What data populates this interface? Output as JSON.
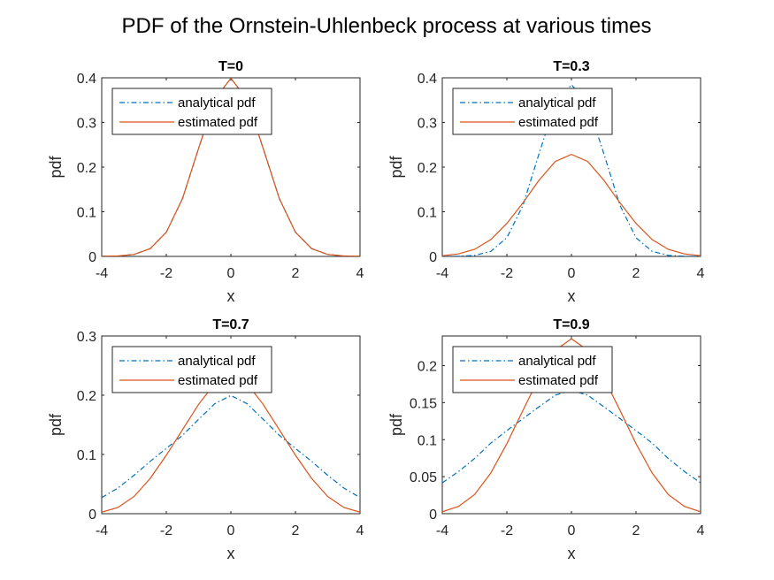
{
  "figure": {
    "title": "PDF of the Ornstein-Uhlenbeck process at various times",
    "colors": {
      "analytical": "#0072BD",
      "estimated": "#D95319",
      "axis": "#262626"
    }
  },
  "chart_data": [
    {
      "type": "line",
      "title": "T=0",
      "xlabel": "x",
      "ylabel": "pdf",
      "xlim": [
        -4,
        4
      ],
      "ylim": [
        0,
        0.4
      ],
      "xticks": [
        "-4",
        "-2",
        "0",
        "2",
        "4"
      ],
      "yticks": [
        "0",
        "0.1",
        "0.2",
        "0.3",
        "0.4"
      ],
      "xtick_values": [
        -4,
        -2,
        0,
        2,
        4
      ],
      "ytick_values": [
        0,
        0.1,
        0.2,
        0.3,
        0.4
      ],
      "grid": false,
      "legend_position": "top-left",
      "x": [
        -4,
        -3.5,
        -3,
        -2.5,
        -2,
        -1.5,
        -1,
        -0.5,
        0,
        0.5,
        1,
        1.5,
        2,
        2.5,
        3,
        3.5,
        4
      ],
      "series": [
        {
          "name": "analytical pdf",
          "style": "dash-dot",
          "values": [
            0.0001,
            0.0009,
            0.0044,
            0.0175,
            0.054,
            0.1295,
            0.242,
            0.3521,
            0.3989,
            0.3521,
            0.242,
            0.1295,
            0.054,
            0.0175,
            0.0044,
            0.0009,
            0.0001
          ]
        },
        {
          "name": "estimated pdf",
          "style": "solid",
          "values": [
            0.0001,
            0.0009,
            0.0044,
            0.0175,
            0.054,
            0.1295,
            0.242,
            0.3521,
            0.3989,
            0.3521,
            0.242,
            0.1295,
            0.054,
            0.0175,
            0.0044,
            0.0009,
            0.0001
          ]
        }
      ]
    },
    {
      "type": "line",
      "title": "T=0.3",
      "xlabel": "x",
      "ylabel": "pdf",
      "xlim": [
        -4,
        4
      ],
      "ylim": [
        0,
        0.4
      ],
      "xticks": [
        "-4",
        "-2",
        "0",
        "2",
        "4"
      ],
      "yticks": [
        "0",
        "0.1",
        "0.2",
        "0.3",
        "0.4"
      ],
      "xtick_values": [
        -4,
        -2,
        0,
        2,
        4
      ],
      "ytick_values": [
        0,
        0.1,
        0.2,
        0.3,
        0.4
      ],
      "grid": false,
      "legend_position": "top-left",
      "x": [
        -4,
        -3.5,
        -3,
        -2.5,
        -2,
        -1.5,
        -1,
        -0.5,
        0,
        0.5,
        1,
        1.5,
        2,
        2.5,
        3,
        3.5,
        4
      ],
      "series": [
        {
          "name": "analytical pdf",
          "style": "dash-dot",
          "values": [
            0,
            0.0003,
            0.0022,
            0.0112,
            0.0418,
            0.1146,
            0.2309,
            0.3423,
            0.3845,
            0.3423,
            0.2309,
            0.1146,
            0.0418,
            0.0112,
            0.0022,
            0.0003,
            0
          ]
        },
        {
          "name": "estimated pdf",
          "style": "solid",
          "values": [
            0.0015,
            0.0055,
            0.0158,
            0.0376,
            0.0739,
            0.1202,
            0.1711,
            0.2126,
            0.2286,
            0.2126,
            0.1711,
            0.1202,
            0.0739,
            0.0376,
            0.0158,
            0.0055,
            0.0015
          ]
        }
      ]
    },
    {
      "type": "line",
      "title": "T=0.7",
      "xlabel": "x",
      "ylabel": "pdf",
      "xlim": [
        -4,
        4
      ],
      "ylim": [
        0,
        0.3
      ],
      "xticks": [
        "-4",
        "-2",
        "0",
        "2",
        "4"
      ],
      "yticks": [
        "0",
        "0.1",
        "0.2",
        "0.3"
      ],
      "xtick_values": [
        -4,
        -2,
        0,
        2,
        4
      ],
      "ytick_values": [
        0,
        0.1,
        0.2,
        0.3
      ],
      "grid": false,
      "legend_position": "top-left",
      "x": [
        -4,
        -3.5,
        -3,
        -2.5,
        -2,
        -1.5,
        -1,
        -0.5,
        0,
        0.5,
        1,
        1.5,
        2,
        2.5,
        3,
        3.5,
        4
      ],
      "series": [
        {
          "name": "analytical pdf",
          "style": "dash-dot",
          "values": [
            0.0271,
            0.0433,
            0.0648,
            0.0884,
            0.1101,
            0.1322,
            0.1593,
            0.1856,
            0.1995,
            0.1856,
            0.1593,
            0.1322,
            0.1101,
            0.0884,
            0.0648,
            0.0433,
            0.0271
          ]
        },
        {
          "name": "estimated pdf",
          "style": "solid",
          "values": [
            0.0026,
            0.0104,
            0.029,
            0.0596,
            0.0986,
            0.1417,
            0.1847,
            0.2195,
            0.2336,
            0.2195,
            0.1847,
            0.1417,
            0.0986,
            0.0596,
            0.029,
            0.0104,
            0.0026
          ]
        }
      ]
    },
    {
      "type": "line",
      "title": "T=0.9",
      "xlabel": "x",
      "ylabel": "pdf",
      "xlim": [
        -4,
        4
      ],
      "ylim": [
        0,
        0.24
      ],
      "xticks": [
        "-4",
        "-2",
        "0",
        "2",
        "4"
      ],
      "yticks": [
        "0",
        "0.05",
        "0.1",
        "0.15",
        "0.2"
      ],
      "xtick_values": [
        -4,
        -2,
        0,
        2,
        4
      ],
      "ytick_values": [
        0,
        0.05,
        0.1,
        0.15,
        0.2
      ],
      "grid": false,
      "legend_position": "top-left",
      "x": [
        -4,
        -3.5,
        -3,
        -2.5,
        -2,
        -1.5,
        -1,
        -0.5,
        0,
        0.5,
        1,
        1.5,
        2,
        2.5,
        3,
        3.5,
        4
      ],
      "series": [
        {
          "name": "analytical pdf",
          "style": "dash-dot",
          "values": [
            0.0417,
            0.0568,
            0.0745,
            0.0953,
            0.1122,
            0.1285,
            0.1445,
            0.1601,
            0.1665,
            0.1601,
            0.1445,
            0.1285,
            0.1122,
            0.0953,
            0.0745,
            0.0568,
            0.0417
          ]
        },
        {
          "name": "estimated pdf",
          "style": "solid",
          "values": [
            0.0026,
            0.0098,
            0.0259,
            0.0549,
            0.0946,
            0.1398,
            0.1838,
            0.2208,
            0.2363,
            0.2208,
            0.1838,
            0.1398,
            0.0946,
            0.0549,
            0.0259,
            0.0098,
            0.0026
          ]
        }
      ]
    }
  ]
}
